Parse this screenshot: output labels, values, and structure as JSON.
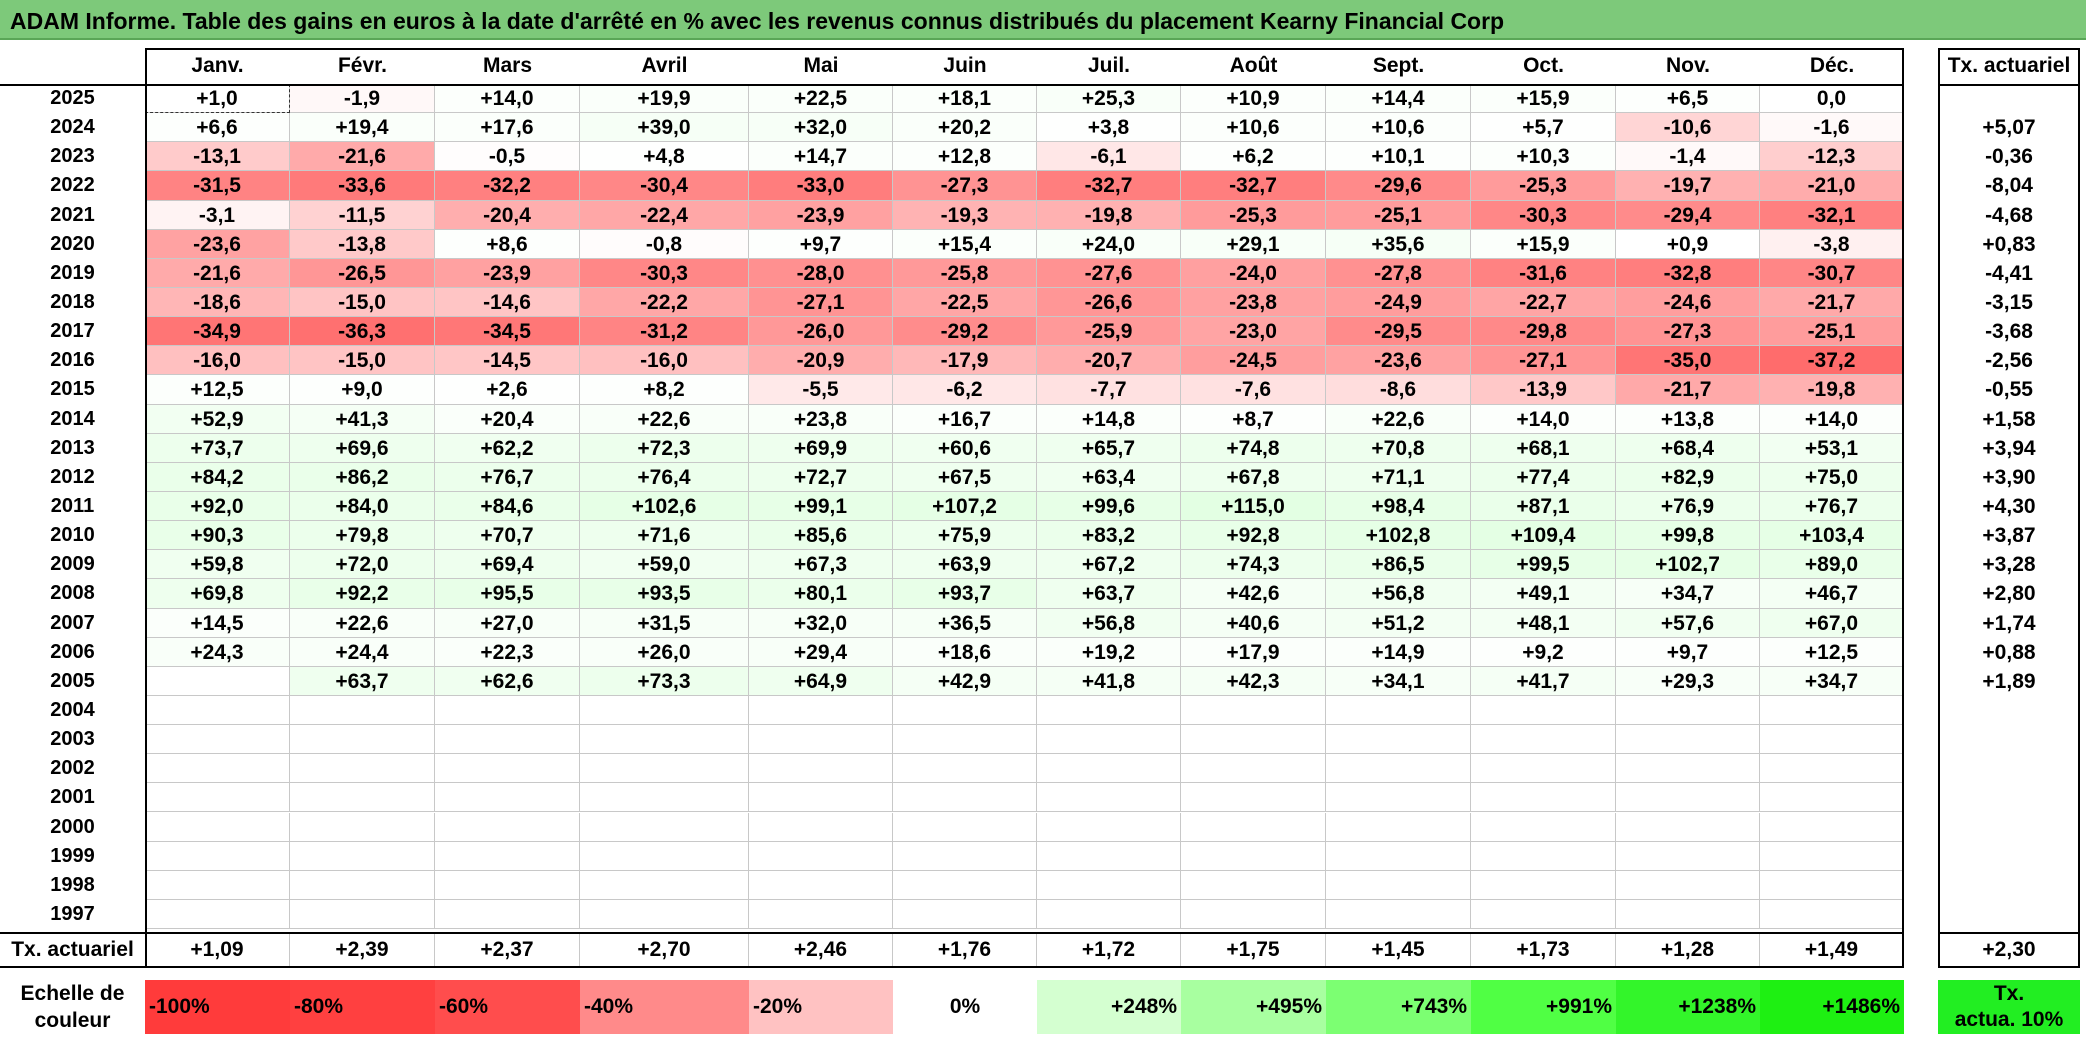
{
  "title": "ADAM Informe. Table des gains en euros à la date d'arrêté en % avec les revenus connus distribués du placement Kearny Financial Corp",
  "months": [
    "Janv.",
    "Févr.",
    "Mars",
    "Avril",
    "Mai",
    "Juin",
    "Juil.",
    "Août",
    "Sept.",
    "Oct.",
    "Nov.",
    "Déc."
  ],
  "rate_header": "Tx. actuariel",
  "rows": [
    {
      "year": "2025",
      "values": [
        "+1,0",
        "-1,9",
        "+14,0",
        "+19,9",
        "+22,5",
        "+18,1",
        "+25,3",
        "+10,9",
        "+14,4",
        "+15,9",
        "+6,5",
        "0,0"
      ],
      "rate": ""
    },
    {
      "year": "2024",
      "values": [
        "+6,6",
        "+19,4",
        "+17,6",
        "+39,0",
        "+32,0",
        "+20,2",
        "+3,8",
        "+10,6",
        "+10,6",
        "+5,7",
        "-10,6",
        "-1,6"
      ],
      "rate": "+5,07"
    },
    {
      "year": "2023",
      "values": [
        "-13,1",
        "-21,6",
        "-0,5",
        "+4,8",
        "+14,7",
        "+12,8",
        "-6,1",
        "+6,2",
        "+10,1",
        "+10,3",
        "-1,4",
        "-12,3"
      ],
      "rate": "-0,36"
    },
    {
      "year": "2022",
      "values": [
        "-31,5",
        "-33,6",
        "-32,2",
        "-30,4",
        "-33,0",
        "-27,3",
        "-32,7",
        "-32,7",
        "-29,6",
        "-25,3",
        "-19,7",
        "-21,0"
      ],
      "rate": "-8,04"
    },
    {
      "year": "2021",
      "values": [
        "-3,1",
        "-11,5",
        "-20,4",
        "-22,4",
        "-23,9",
        "-19,3",
        "-19,8",
        "-25,3",
        "-25,1",
        "-30,3",
        "-29,4",
        "-32,1"
      ],
      "rate": "-4,68"
    },
    {
      "year": "2020",
      "values": [
        "-23,6",
        "-13,8",
        "+8,6",
        "-0,8",
        "+9,7",
        "+15,4",
        "+24,0",
        "+29,1",
        "+35,6",
        "+15,9",
        "+0,9",
        "-3,8"
      ],
      "rate": "+0,83"
    },
    {
      "year": "2019",
      "values": [
        "-21,6",
        "-26,5",
        "-23,9",
        "-30,3",
        "-28,0",
        "-25,8",
        "-27,6",
        "-24,0",
        "-27,8",
        "-31,6",
        "-32,8",
        "-30,7"
      ],
      "rate": "-4,41"
    },
    {
      "year": "2018",
      "values": [
        "-18,6",
        "-15,0",
        "-14,6",
        "-22,2",
        "-27,1",
        "-22,5",
        "-26,6",
        "-23,8",
        "-24,9",
        "-22,7",
        "-24,6",
        "-21,7"
      ],
      "rate": "-3,15"
    },
    {
      "year": "2017",
      "values": [
        "-34,9",
        "-36,3",
        "-34,5",
        "-31,2",
        "-26,0",
        "-29,2",
        "-25,9",
        "-23,0",
        "-29,5",
        "-29,8",
        "-27,3",
        "-25,1"
      ],
      "rate": "-3,68"
    },
    {
      "year": "2016",
      "values": [
        "-16,0",
        "-15,0",
        "-14,5",
        "-16,0",
        "-20,9",
        "-17,9",
        "-20,7",
        "-24,5",
        "-23,6",
        "-27,1",
        "-35,0",
        "-37,2"
      ],
      "rate": "-2,56"
    },
    {
      "year": "2015",
      "values": [
        "+12,5",
        "+9,0",
        "+2,6",
        "+8,2",
        "-5,5",
        "-6,2",
        "-7,7",
        "-7,6",
        "-8,6",
        "-13,9",
        "-21,7",
        "-19,8"
      ],
      "rate": "-0,55"
    },
    {
      "year": "2014",
      "values": [
        "+52,9",
        "+41,3",
        "+20,4",
        "+22,6",
        "+23,8",
        "+16,7",
        "+14,8",
        "+8,7",
        "+22,6",
        "+14,0",
        "+13,8",
        "+14,0"
      ],
      "rate": "+1,58"
    },
    {
      "year": "2013",
      "values": [
        "+73,7",
        "+69,6",
        "+62,2",
        "+72,3",
        "+69,9",
        "+60,6",
        "+65,7",
        "+74,8",
        "+70,8",
        "+68,1",
        "+68,4",
        "+53,1"
      ],
      "rate": "+3,94"
    },
    {
      "year": "2012",
      "values": [
        "+84,2",
        "+86,2",
        "+76,7",
        "+76,4",
        "+72,7",
        "+67,5",
        "+63,4",
        "+67,8",
        "+71,1",
        "+77,4",
        "+82,9",
        "+75,0"
      ],
      "rate": "+3,90"
    },
    {
      "year": "2011",
      "values": [
        "+92,0",
        "+84,0",
        "+84,6",
        "+102,6",
        "+99,1",
        "+107,2",
        "+99,6",
        "+115,0",
        "+98,4",
        "+87,1",
        "+76,9",
        "+76,7"
      ],
      "rate": "+4,30"
    },
    {
      "year": "2010",
      "values": [
        "+90,3",
        "+79,8",
        "+70,7",
        "+71,6",
        "+85,6",
        "+75,9",
        "+83,2",
        "+92,8",
        "+102,8",
        "+109,4",
        "+99,8",
        "+103,4"
      ],
      "rate": "+3,87"
    },
    {
      "year": "2009",
      "values": [
        "+59,8",
        "+72,0",
        "+69,4",
        "+59,0",
        "+67,3",
        "+63,9",
        "+67,2",
        "+74,3",
        "+86,5",
        "+99,5",
        "+102,7",
        "+89,0"
      ],
      "rate": "+3,28"
    },
    {
      "year": "2008",
      "values": [
        "+69,8",
        "+92,2",
        "+95,5",
        "+93,5",
        "+80,1",
        "+93,7",
        "+63,7",
        "+42,6",
        "+56,8",
        "+49,1",
        "+34,7",
        "+46,7"
      ],
      "rate": "+2,80"
    },
    {
      "year": "2007",
      "values": [
        "+14,5",
        "+22,6",
        "+27,0",
        "+31,5",
        "+32,0",
        "+36,5",
        "+56,8",
        "+40,6",
        "+51,2",
        "+48,1",
        "+57,6",
        "+67,0"
      ],
      "rate": "+1,74"
    },
    {
      "year": "2006",
      "values": [
        "+24,3",
        "+24,4",
        "+22,3",
        "+26,0",
        "+29,4",
        "+18,6",
        "+19,2",
        "+17,9",
        "+14,9",
        "+9,2",
        "+9,7",
        "+12,5"
      ],
      "rate": "+0,88"
    },
    {
      "year": "2005",
      "values": [
        "",
        "+63,7",
        "+62,6",
        "+73,3",
        "+64,9",
        "+42,9",
        "+41,8",
        "+42,3",
        "+34,1",
        "+41,7",
        "+29,3",
        "+34,7"
      ],
      "rate": "+1,89"
    },
    {
      "year": "2004",
      "values": [
        "",
        "",
        "",
        "",
        "",
        "",
        "",
        "",
        "",
        "",
        "",
        ""
      ],
      "rate": ""
    },
    {
      "year": "2003",
      "values": [
        "",
        "",
        "",
        "",
        "",
        "",
        "",
        "",
        "",
        "",
        "",
        ""
      ],
      "rate": ""
    },
    {
      "year": "2002",
      "values": [
        "",
        "",
        "",
        "",
        "",
        "",
        "",
        "",
        "",
        "",
        "",
        ""
      ],
      "rate": ""
    },
    {
      "year": "2001",
      "values": [
        "",
        "",
        "",
        "",
        "",
        "",
        "",
        "",
        "",
        "",
        "",
        ""
      ],
      "rate": ""
    },
    {
      "year": "2000",
      "values": [
        "",
        "",
        "",
        "",
        "",
        "",
        "",
        "",
        "",
        "",
        "",
        ""
      ],
      "rate": ""
    },
    {
      "year": "1999",
      "values": [
        "",
        "",
        "",
        "",
        "",
        "",
        "",
        "",
        "",
        "",
        "",
        ""
      ],
      "rate": ""
    },
    {
      "year": "1998",
      "values": [
        "",
        "",
        "",
        "",
        "",
        "",
        "",
        "",
        "",
        "",
        "",
        ""
      ],
      "rate": ""
    },
    {
      "year": "1997",
      "values": [
        "",
        "",
        "",
        "",
        "",
        "",
        "",
        "",
        "",
        "",
        "",
        ""
      ],
      "rate": ""
    }
  ],
  "footer": {
    "label": "Tx. actuariel",
    "values": [
      "+1,09",
      "+2,39",
      "+2,37",
      "+2,70",
      "+2,46",
      "+1,76",
      "+1,72",
      "+1,75",
      "+1,45",
      "+1,73",
      "+1,28",
      "+1,49"
    ],
    "total": "+2,30"
  },
  "scale": {
    "label_line1": "Echelle de",
    "label_line2": "couleur",
    "steps": [
      {
        "text": "-100%",
        "color": "#ff3b3b",
        "align": "left"
      },
      {
        "text": "-80%",
        "color": "#ff4040",
        "align": "left"
      },
      {
        "text": "-60%",
        "color": "#ff4d4d",
        "align": "left"
      },
      {
        "text": "-40%",
        "color": "#ff8a8a",
        "align": "left"
      },
      {
        "text": "-20%",
        "color": "#ffc2c2",
        "align": "left"
      },
      {
        "text": "0%",
        "color": "#ffffff",
        "align": "center"
      },
      {
        "text": "+248%",
        "color": "#d4ffd0",
        "align": "right"
      },
      {
        "text": "+495%",
        "color": "#a8ffa0",
        "align": "right"
      },
      {
        "text": "+743%",
        "color": "#7cff72",
        "align": "right"
      },
      {
        "text": "+991%",
        "color": "#50ff44",
        "align": "right"
      },
      {
        "text": "+1238%",
        "color": "#33f52a",
        "align": "right"
      },
      {
        "text": "+1486%",
        "color": "#1ef012",
        "align": "right"
      }
    ],
    "rate_line1": "Tx.",
    "rate_line2": "actua. 10%",
    "rate_color": "#22ee22"
  },
  "colors": {
    "title_bg": "#7dc97a",
    "negative_base": "#ff7a7a",
    "positive_base": "#dcf8dc"
  }
}
